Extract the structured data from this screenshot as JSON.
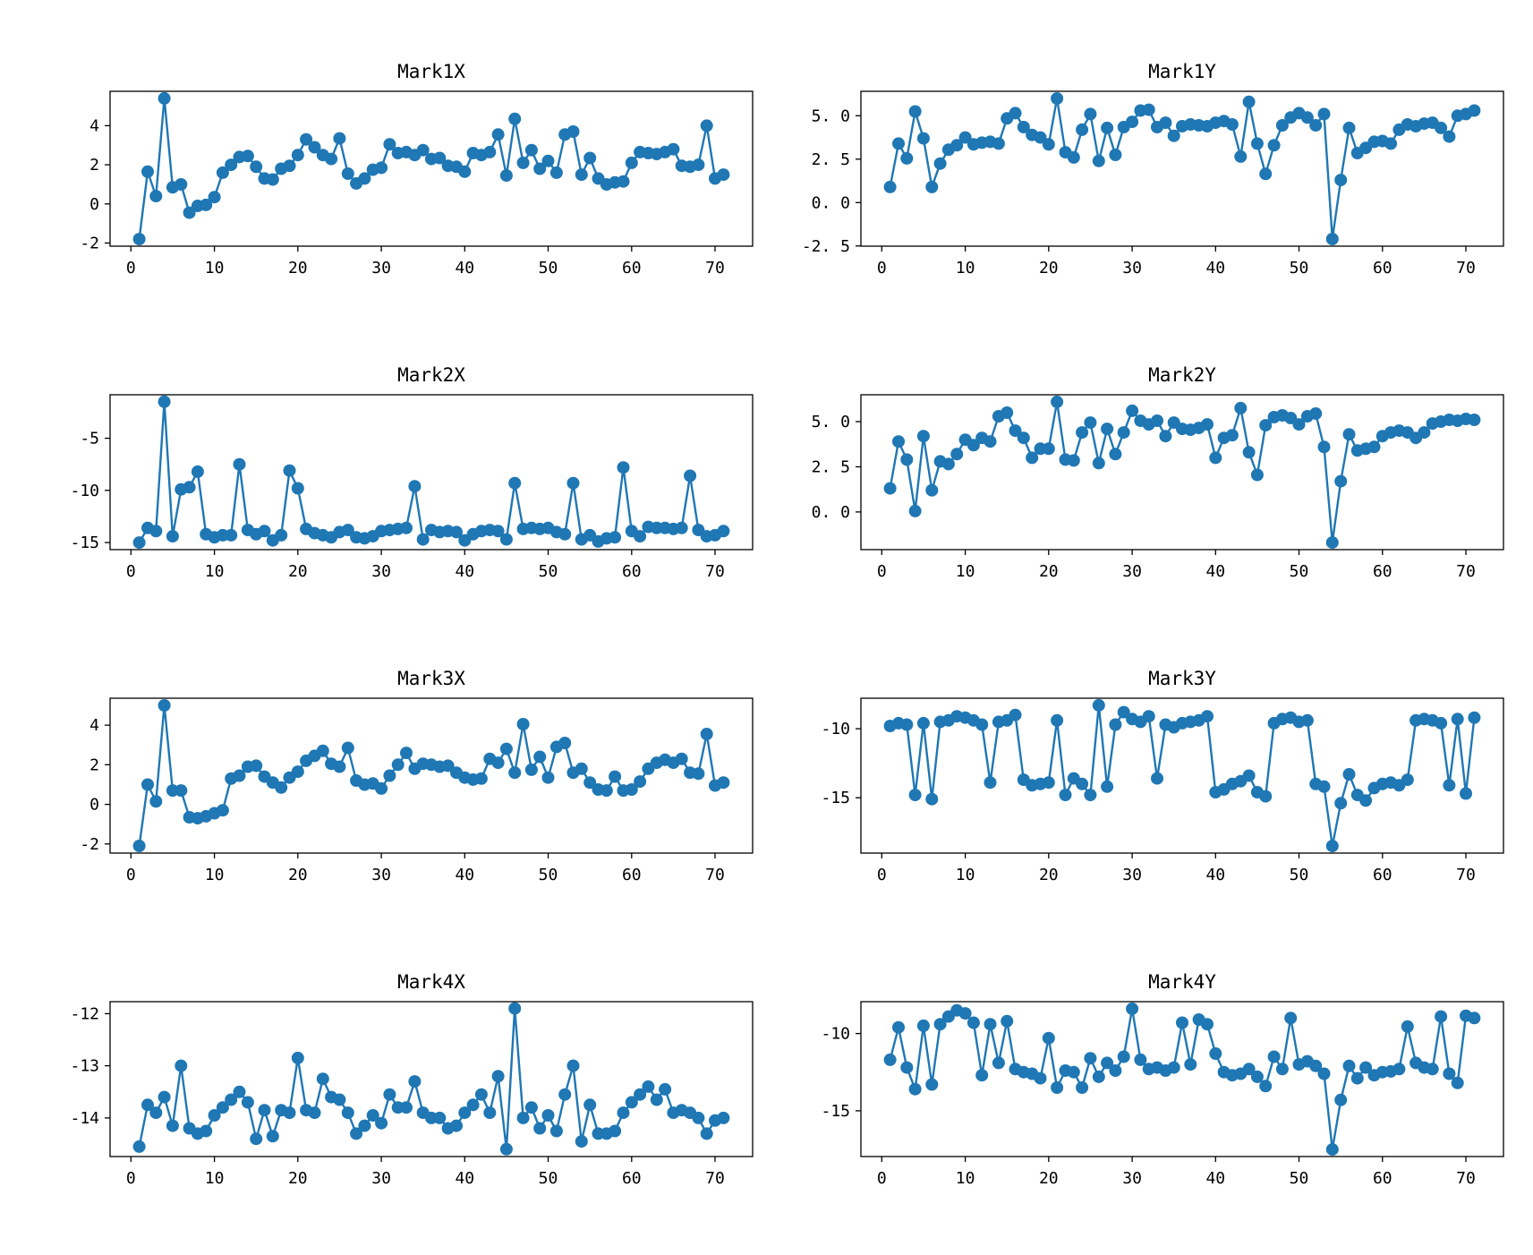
{
  "figure": {
    "background": "#ffffff",
    "series_color": "#1f77b4",
    "axis_color": "#000000",
    "marker_shape": "circle",
    "points_per_series": 71,
    "x_start": 1
  },
  "chart_data": [
    {
      "type": "line",
      "title": "Mark1X",
      "x_start": 1,
      "grid": false,
      "legend": null,
      "xlim": [
        -2.5,
        74.5
      ],
      "xticks": [
        0,
        10,
        20,
        30,
        40,
        50,
        60,
        70
      ],
      "xtick_labels": [
        "0",
        "10",
        "20",
        "30",
        "40",
        "50",
        "60",
        "70"
      ],
      "ylim": [
        -2.16,
        5.76
      ],
      "yticks": [
        4,
        2,
        0,
        -2
      ],
      "ytick_labels": [
        "4",
        "2",
        "0",
        "-2"
      ],
      "values": [
        -1.8,
        1.65,
        0.4,
        5.4,
        0.85,
        1.0,
        -0.45,
        -0.1,
        -0.05,
        0.35,
        1.6,
        2.0,
        2.4,
        2.45,
        1.9,
        1.3,
        1.25,
        1.8,
        1.95,
        2.5,
        3.3,
        2.9,
        2.5,
        2.3,
        3.35,
        1.55,
        1.05,
        1.3,
        1.75,
        1.85,
        3.05,
        2.6,
        2.65,
        2.5,
        2.75,
        2.3,
        2.35,
        1.95,
        1.9,
        1.65,
        2.6,
        2.5,
        2.65,
        3.55,
        1.45,
        4.35,
        2.1,
        2.75,
        1.8,
        2.2,
        1.6,
        3.55,
        3.7,
        1.5,
        2.35,
        1.3,
        1.0,
        1.1,
        1.15,
        2.1,
        2.65,
        2.6,
        2.55,
        2.65,
        2.8,
        1.95,
        1.9,
        2.0,
        4.0,
        1.3,
        1.5
      ]
    },
    {
      "type": "line",
      "title": "Mark1Y",
      "x_start": 1,
      "grid": false,
      "legend": null,
      "xlim": [
        -2.5,
        74.5
      ],
      "xticks": [
        0,
        10,
        20,
        30,
        40,
        50,
        60,
        70
      ],
      "xtick_labels": [
        "0",
        "10",
        "20",
        "30",
        "40",
        "50",
        "60",
        "70"
      ],
      "ylim": [
        -2.51,
        6.41
      ],
      "yticks": [
        5.0,
        2.5,
        0.0,
        -2.5
      ],
      "ytick_labels": [
        "5. 0",
        "2. 5",
        "0. 0",
        "-2. 5"
      ],
      "values": [
        0.9,
        3.4,
        2.55,
        5.25,
        3.7,
        0.9,
        2.25,
        3.05,
        3.3,
        3.75,
        3.35,
        3.45,
        3.5,
        3.4,
        4.85,
        5.15,
        4.35,
        3.9,
        3.75,
        3.35,
        6.0,
        2.9,
        2.6,
        4.2,
        5.1,
        2.4,
        4.3,
        2.75,
        4.35,
        4.65,
        5.3,
        5.35,
        4.35,
        4.6,
        3.85,
        4.4,
        4.5,
        4.45,
        4.4,
        4.6,
        4.7,
        4.5,
        2.65,
        5.8,
        3.4,
        1.65,
        3.3,
        4.45,
        4.9,
        5.15,
        4.9,
        4.45,
        5.1,
        -2.1,
        1.3,
        4.3,
        2.85,
        3.15,
        3.5,
        3.55,
        3.4,
        4.2,
        4.5,
        4.4,
        4.55,
        4.6,
        4.3,
        3.8,
        5.0,
        5.1,
        5.3
      ]
    },
    {
      "type": "line",
      "title": "Mark2X",
      "x_start": 1,
      "grid": false,
      "legend": null,
      "xlim": [
        -2.5,
        74.5
      ],
      "xticks": [
        0,
        10,
        20,
        30,
        40,
        50,
        60,
        70
      ],
      "xtick_labels": [
        "0",
        "10",
        "20",
        "30",
        "40",
        "50",
        "60",
        "70"
      ],
      "ylim": [
        -15.68,
        -0.83
      ],
      "yticks": [
        -5,
        -10,
        -15
      ],
      "ytick_labels": [
        "-5",
        "-10",
        "-15"
      ],
      "values": [
        -15.0,
        -13.6,
        -13.9,
        -1.5,
        -14.4,
        -9.9,
        -9.7,
        -8.2,
        -14.2,
        -14.5,
        -14.3,
        -14.3,
        -7.5,
        -13.8,
        -14.2,
        -13.9,
        -14.8,
        -14.3,
        -8.1,
        -9.8,
        -13.7,
        -14.1,
        -14.3,
        -14.5,
        -14.0,
        -13.8,
        -14.5,
        -14.6,
        -14.4,
        -13.9,
        -13.8,
        -13.7,
        -13.6,
        -9.6,
        -14.7,
        -13.8,
        -14.0,
        -13.9,
        -14.0,
        -14.8,
        -14.2,
        -13.9,
        -13.8,
        -13.9,
        -14.7,
        -9.3,
        -13.7,
        -13.6,
        -13.7,
        -13.6,
        -14.0,
        -14.2,
        -9.3,
        -14.7,
        -14.3,
        -14.9,
        -14.6,
        -14.5,
        -7.8,
        -13.9,
        -14.4,
        -13.5,
        -13.6,
        -13.6,
        -13.7,
        -13.6,
        -8.6,
        -13.8,
        -14.4,
        -14.3,
        -13.9
      ]
    },
    {
      "type": "line",
      "title": "Mark2Y",
      "x_start": 1,
      "grid": false,
      "legend": null,
      "xlim": [
        -2.5,
        74.5
      ],
      "xticks": [
        0,
        10,
        20,
        30,
        40,
        50,
        60,
        70
      ],
      "xtick_labels": [
        "0",
        "10",
        "20",
        "30",
        "40",
        "50",
        "60",
        "70"
      ],
      "ylim": [
        -2.09,
        6.49
      ],
      "yticks": [
        5.0,
        2.5,
        0.0
      ],
      "ytick_labels": [
        "5. 0",
        "2. 5",
        "0. 0"
      ],
      "values": [
        1.3,
        3.9,
        2.9,
        0.05,
        4.2,
        1.2,
        2.8,
        2.65,
        3.2,
        4.0,
        3.7,
        4.1,
        3.9,
        5.3,
        5.5,
        4.5,
        4.1,
        3.0,
        3.5,
        3.5,
        6.1,
        2.9,
        2.85,
        4.4,
        4.95,
        2.7,
        4.6,
        3.2,
        4.4,
        5.6,
        5.05,
        4.85,
        5.05,
        4.2,
        4.95,
        4.6,
        4.55,
        4.65,
        4.85,
        3.0,
        4.1,
        4.25,
        5.75,
        3.3,
        2.05,
        4.8,
        5.25,
        5.35,
        5.2,
        4.85,
        5.3,
        5.45,
        3.6,
        -1.7,
        1.7,
        4.3,
        3.4,
        3.5,
        3.6,
        4.2,
        4.4,
        4.5,
        4.4,
        4.1,
        4.4,
        4.9,
        5.0,
        5.1,
        5.05,
        5.15,
        5.1
      ]
    },
    {
      "type": "line",
      "title": "Mark3X",
      "x_start": 1,
      "grid": false,
      "legend": null,
      "xlim": [
        -2.5,
        74.5
      ],
      "xticks": [
        0,
        10,
        20,
        30,
        40,
        50,
        60,
        70
      ],
      "xtick_labels": [
        "0",
        "10",
        "20",
        "30",
        "40",
        "50",
        "60",
        "70"
      ],
      "ylim": [
        -2.46,
        5.36
      ],
      "yticks": [
        4,
        2,
        0,
        -2
      ],
      "ytick_labels": [
        "4",
        "2",
        "0",
        "-2"
      ],
      "values": [
        -2.1,
        1.0,
        0.15,
        5.0,
        0.7,
        0.7,
        -0.65,
        -0.7,
        -0.6,
        -0.45,
        -0.3,
        1.3,
        1.45,
        1.9,
        1.95,
        1.4,
        1.1,
        0.85,
        1.35,
        1.65,
        2.2,
        2.45,
        2.7,
        2.05,
        1.9,
        2.85,
        1.2,
        1.0,
        1.05,
        0.8,
        1.45,
        2.0,
        2.6,
        1.8,
        2.05,
        2.0,
        1.9,
        1.95,
        1.6,
        1.35,
        1.25,
        1.3,
        2.3,
        2.1,
        2.8,
        1.6,
        4.05,
        1.75,
        2.4,
        1.35,
        2.9,
        3.1,
        1.6,
        1.8,
        1.1,
        0.75,
        0.7,
        1.4,
        0.7,
        0.75,
        1.15,
        1.8,
        2.1,
        2.25,
        2.1,
        2.3,
        1.6,
        1.55,
        3.55,
        0.95,
        1.1
      ]
    },
    {
      "type": "line",
      "title": "Mark3Y",
      "x_start": 1,
      "grid": false,
      "legend": null,
      "xlim": [
        -2.5,
        74.5
      ],
      "xticks": [
        0,
        10,
        20,
        30,
        40,
        50,
        60,
        70
      ],
      "xtick_labels": [
        "0",
        "10",
        "20",
        "30",
        "40",
        "50",
        "60",
        "70"
      ],
      "ylim": [
        -19.01,
        -7.79
      ],
      "yticks": [
        -10,
        -15
      ],
      "ytick_labels": [
        "-10",
        "-15"
      ],
      "values": [
        -9.8,
        -9.6,
        -9.7,
        -14.8,
        -9.6,
        -15.1,
        -9.5,
        -9.4,
        -9.1,
        -9.2,
        -9.4,
        -9.7,
        -13.9,
        -9.5,
        -9.4,
        -9.0,
        -13.7,
        -14.1,
        -14.0,
        -13.9,
        -9.4,
        -14.8,
        -13.6,
        -14.0,
        -14.8,
        -8.3,
        -14.2,
        -9.7,
        -8.8,
        -9.3,
        -9.5,
        -9.1,
        -13.6,
        -9.7,
        -9.9,
        -9.6,
        -9.5,
        -9.4,
        -9.1,
        -14.6,
        -14.4,
        -14.0,
        -13.8,
        -13.4,
        -14.6,
        -14.9,
        -9.6,
        -9.3,
        -9.2,
        -9.5,
        -9.4,
        -14.0,
        -14.2,
        -18.5,
        -15.4,
        -13.3,
        -14.8,
        -15.2,
        -14.3,
        -14.0,
        -13.9,
        -14.1,
        -13.7,
        -9.4,
        -9.3,
        -9.4,
        -9.6,
        -14.1,
        -9.3,
        -14.7,
        -9.2
      ]
    },
    {
      "type": "line",
      "title": "Mark4X",
      "x_start": 1,
      "grid": false,
      "legend": null,
      "xlim": [
        -2.5,
        74.5
      ],
      "xticks": [
        0,
        10,
        20,
        30,
        40,
        50,
        60,
        70
      ],
      "xtick_labels": [
        "0",
        "10",
        "20",
        "30",
        "40",
        "50",
        "60",
        "70"
      ],
      "ylim": [
        -14.74,
        -11.77
      ],
      "yticks": [
        -12,
        -13,
        -14
      ],
      "ytick_labels": [
        "-12",
        "-13",
        "-14"
      ],
      "values": [
        -14.55,
        -13.75,
        -13.9,
        -13.6,
        -14.15,
        -13.0,
        -14.2,
        -14.3,
        -14.25,
        -13.95,
        -13.8,
        -13.65,
        -13.5,
        -13.7,
        -14.4,
        -13.85,
        -14.35,
        -13.85,
        -13.9,
        -12.85,
        -13.85,
        -13.9,
        -13.25,
        -13.6,
        -13.65,
        -13.9,
        -14.3,
        -14.15,
        -13.95,
        -14.1,
        -13.55,
        -13.8,
        -13.8,
        -13.3,
        -13.9,
        -14.0,
        -14.0,
        -14.2,
        -14.15,
        -13.9,
        -13.75,
        -13.55,
        -13.9,
        -13.2,
        -14.6,
        -11.9,
        -14.0,
        -13.8,
        -14.2,
        -13.95,
        -14.25,
        -13.55,
        -13.0,
        -14.45,
        -13.75,
        -14.3,
        -14.3,
        -14.25,
        -13.9,
        -13.7,
        -13.55,
        -13.4,
        -13.65,
        -13.45,
        -13.9,
        -13.85,
        -13.9,
        -14.0,
        -14.3,
        -14.05,
        -14.0
      ]
    },
    {
      "type": "line",
      "title": "Mark4Y",
      "x_start": 1,
      "grid": false,
      "legend": null,
      "xlim": [
        -2.5,
        74.5
      ],
      "xticks": [
        0,
        10,
        20,
        30,
        40,
        50,
        60,
        70
      ],
      "xtick_labels": [
        "0",
        "10",
        "20",
        "30",
        "40",
        "50",
        "60",
        "70"
      ],
      "ylim": [
        -17.96,
        -7.94
      ],
      "yticks": [
        -10,
        -15
      ],
      "ytick_labels": [
        "-10",
        "-15"
      ],
      "values": [
        -11.7,
        -9.6,
        -12.2,
        -13.6,
        -9.5,
        -13.3,
        -9.4,
        -8.9,
        -8.5,
        -8.7,
        -9.3,
        -12.7,
        -9.4,
        -11.9,
        -9.2,
        -12.3,
        -12.5,
        -12.6,
        -12.9,
        -10.3,
        -13.5,
        -12.4,
        -12.5,
        -13.5,
        -11.6,
        -12.8,
        -11.9,
        -12.4,
        -11.5,
        -8.4,
        -11.7,
        -12.3,
        -12.2,
        -12.4,
        -12.2,
        -9.3,
        -12.0,
        -9.1,
        -9.4,
        -11.3,
        -12.5,
        -12.7,
        -12.6,
        -12.3,
        -12.8,
        -13.4,
        -11.5,
        -12.3,
        -9.0,
        -12.0,
        -11.8,
        -12.1,
        -12.6,
        -17.5,
        -14.3,
        -12.1,
        -12.9,
        -12.2,
        -12.7,
        -12.5,
        -12.45,
        -12.3,
        -9.55,
        -11.9,
        -12.2,
        -12.3,
        -8.9,
        -12.6,
        -13.2,
        -8.85,
        -9.0
      ]
    }
  ]
}
